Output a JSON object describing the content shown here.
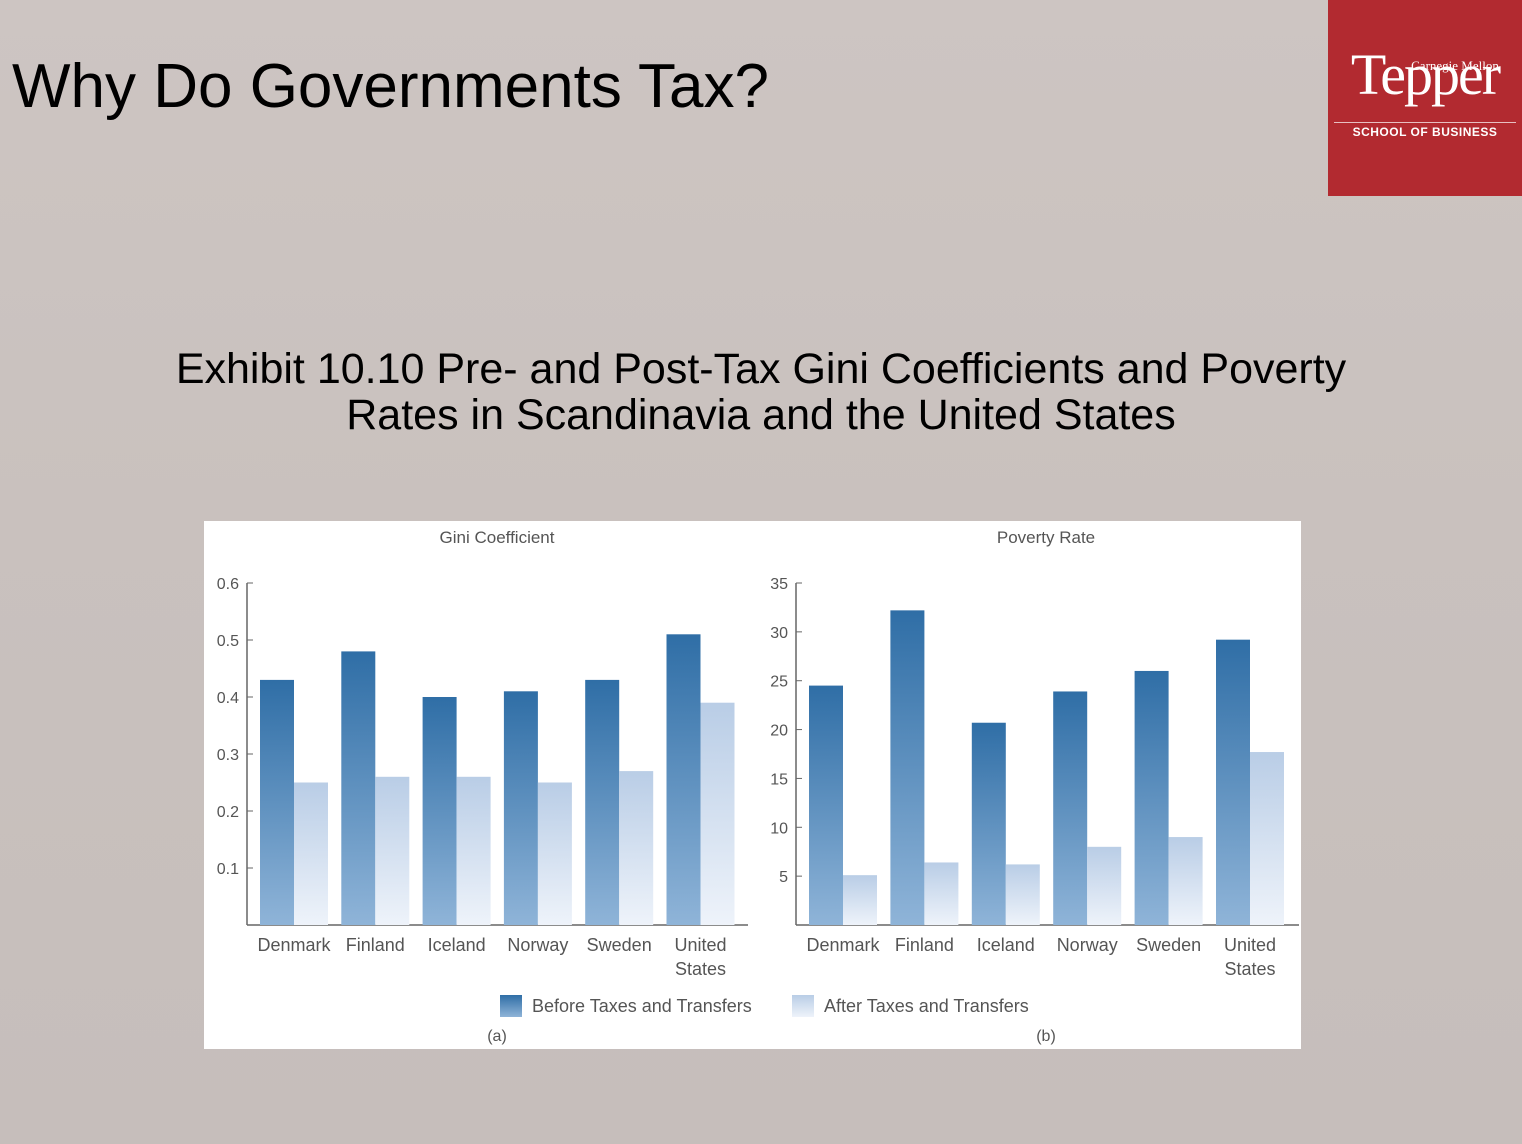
{
  "slide": {
    "title": "Why Do Governments Tax?",
    "exhibit_title_line1": "Exhibit 10.10 Pre- and Post-Tax Gini Coefficients and Poverty",
    "exhibit_title_line2": "Rates in Scandinavia and the United States"
  },
  "logo": {
    "line1": "Carnegie Mellon",
    "line2": "Tepper",
    "line3": "SCHOOL OF BUSINESS",
    "color": "#b22a30"
  },
  "legend": {
    "before": "Before Taxes and Transfers",
    "after": "After Taxes and Transfers"
  },
  "colors": {
    "before_top": "#2f6ea6",
    "before_bottom": "#8fb4d8",
    "after_top": "#b9cde6",
    "after_bottom": "#eef3fa"
  },
  "chart_data": [
    {
      "type": "bar",
      "title": "Gini Coefficient",
      "panel_label": "(a)",
      "categories": [
        "Denmark",
        "Finland",
        "Iceland",
        "Norway",
        "Sweden",
        "United States"
      ],
      "series": [
        {
          "name": "Before Taxes and Transfers",
          "values": [
            0.43,
            0.48,
            0.4,
            0.41,
            0.43,
            0.51
          ]
        },
        {
          "name": "After Taxes and Transfers",
          "values": [
            0.25,
            0.26,
            0.26,
            0.25,
            0.27,
            0.39
          ]
        }
      ],
      "ylim": [
        0,
        0.6
      ],
      "yticks": [
        "0.1",
        "0.2",
        "0.3",
        "0.4",
        "0.5",
        "0.6"
      ],
      "ytick_values": [
        0.1,
        0.2,
        0.3,
        0.4,
        0.5,
        0.6
      ]
    },
    {
      "type": "bar",
      "title": "Poverty Rate",
      "panel_label": "(b)",
      "categories": [
        "Denmark",
        "Finland",
        "Iceland",
        "Norway",
        "Sweden",
        "United States"
      ],
      "series": [
        {
          "name": "Before Taxes and Transfers",
          "values": [
            24.5,
            32.2,
            20.7,
            23.9,
            26.0,
            29.2
          ]
        },
        {
          "name": "After Taxes and Transfers",
          "values": [
            5.1,
            6.4,
            6.2,
            8.0,
            9.0,
            17.7
          ]
        }
      ],
      "ylim": [
        0,
        35
      ],
      "yticks": [
        "5",
        "10",
        "15",
        "20",
        "25",
        "30",
        "35"
      ],
      "ytick_values": [
        5,
        10,
        15,
        20,
        25,
        30,
        35
      ]
    }
  ]
}
